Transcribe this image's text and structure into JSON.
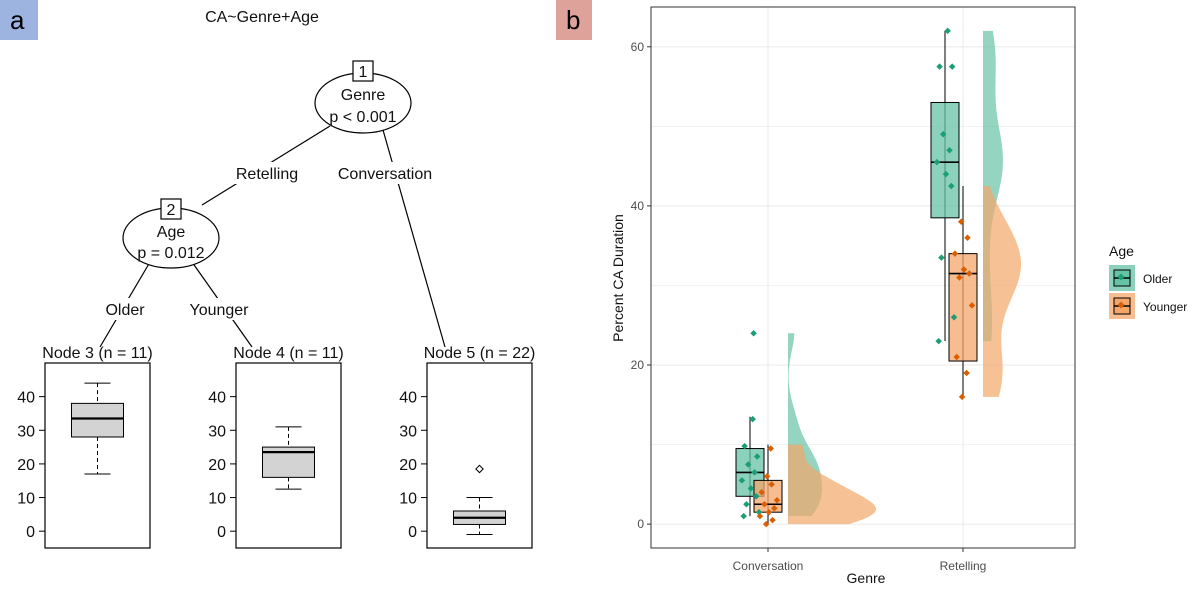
{
  "chart_data": [
    {
      "panel": "a",
      "type": "tree",
      "title": "CA~Genre+Age",
      "nodes": [
        {
          "id": "1",
          "variable": "Genre",
          "p_label": "p < 0.001"
        },
        {
          "id": "2",
          "variable": "Age",
          "p_label": "p = 0.012"
        }
      ],
      "edges": [
        {
          "from": "1",
          "to": "2",
          "label": "Retelling"
        },
        {
          "from": "1",
          "to": "5",
          "label": "Conversation"
        },
        {
          "from": "2",
          "to": "3",
          "label": "Older"
        },
        {
          "from": "2",
          "to": "4",
          "label": "Younger"
        }
      ],
      "terminal_nodes": [
        {
          "label": "Node 3 (n = 11)",
          "min": 17,
          "q1": 28,
          "median": 33.5,
          "q3": 38,
          "max": 44,
          "outliers": []
        },
        {
          "label": "Node 4 (n = 11)",
          "min": 12.5,
          "q1": 16,
          "median": 23.5,
          "q3": 25,
          "max": 31,
          "outliers": []
        },
        {
          "label": "Node 5 (n = 22)",
          "min": -1,
          "q1": 2,
          "median": 4,
          "q3": 6,
          "max": 10,
          "outliers": [
            18.5
          ]
        }
      ],
      "y_ticks": [
        "0",
        "10",
        "20",
        "30",
        "40"
      ],
      "ylim": [
        -5,
        50
      ]
    },
    {
      "panel": "b",
      "type": "raincloud",
      "xlabel": "Genre",
      "ylabel": "Percent CA Duration",
      "categories": [
        "Conversation",
        "Retelling"
      ],
      "ylim": [
        -3,
        65
      ],
      "y_ticks": [
        "0",
        "20",
        "40",
        "60"
      ],
      "grid": true,
      "legend": {
        "title": "Age",
        "position": "right",
        "entries": [
          "Older",
          "Younger"
        ]
      },
      "series": [
        {
          "name": "Older",
          "color": "#1b9e77",
          "fill": "#66c2a5",
          "boxes": [
            {
              "category": "Conversation",
              "min": 1,
              "q1": 3.5,
              "median": 6.5,
              "q3": 9.5,
              "max": 13.5
            },
            {
              "category": "Retelling",
              "min": 23,
              "q1": 38.5,
              "median": 45.5,
              "q3": 53,
              "max": 62
            }
          ],
          "points": [
            {
              "category": "Conversation",
              "values": [
                13.2,
                9.8,
                8.5,
                7.5,
                6.5,
                5.5,
                4.5,
                3.5,
                2.5,
                1.5,
                1,
                24
              ]
            },
            {
              "category": "Retelling",
              "values": [
                62,
                57.5,
                57.5,
                49,
                47,
                45.5,
                44,
                42.5,
                33.5,
                26,
                23
              ]
            }
          ]
        },
        {
          "name": "Younger",
          "color": "#d95f02",
          "fill": "#f4a66a",
          "boxes": [
            {
              "category": "Conversation",
              "min": 0,
              "q1": 1.5,
              "median": 2.5,
              "q3": 5.5,
              "max": 10
            },
            {
              "category": "Retelling",
              "min": 16,
              "q1": 20.5,
              "median": 31.5,
              "q3": 34,
              "max": 42.5
            }
          ],
          "points": [
            {
              "category": "Conversation",
              "values": [
                0,
                0.5,
                1,
                1.5,
                2,
                2.5,
                3,
                4,
                5,
                6,
                9.5
              ]
            },
            {
              "category": "Retelling",
              "values": [
                38,
                36,
                34,
                32,
                31.5,
                31,
                27.5,
                21,
                19,
                16
              ]
            }
          ]
        }
      ]
    }
  ]
}
